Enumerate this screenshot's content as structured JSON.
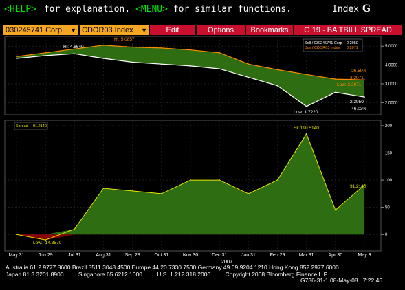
{
  "header": {
    "help_key": "<HELP>",
    "help_text": " for explanation, ",
    "menu_key": "<MENU>",
    "menu_text": " for similar functions.",
    "index_label": "Index",
    "index_letter": "G"
  },
  "toolbar": {
    "security1": "030245741 Corp",
    "security2": "CDOR03 Index",
    "edit": "Edit",
    "options": "Options",
    "bookmarks": "Bookmarks",
    "title": "G 19 - BA TBILL SPREAD"
  },
  "colors": {
    "amber": "#f5a623",
    "red": "#c8102e",
    "spread": "#e8e800",
    "sell": "#ffffff",
    "buy": "#ff8c00",
    "fill_green": "#2f6d12",
    "fill_red": "#8b0000"
  },
  "upper_panel": {
    "legend_sell": "Sell / 030245741 Corp",
    "legend_sell_val": "2.2950",
    "legend_buy": "Buy / CDOR03 Index",
    "legend_buy_val": "3.2071",
    "hi_sell": "Hi: 4.6640",
    "hi_buy": "Hi: 5.0857",
    "low_sell": "Low: 1.7220",
    "low_buy": "Low: 3.2071",
    "pct_buy": "-26.59%",
    "last_buy": "3.2071",
    "last_sell": "2.2950",
    "pct_sell": "-46.03%",
    "axis": [
      "5.0000",
      "4.0000",
      "3.0000",
      "2.0000"
    ]
  },
  "lower_panel": {
    "legend_label": "Spread",
    "legend_val": "91.2140",
    "hi": "Hi: 190.5140",
    "low": "Low: -14.3570",
    "last": "91.2140",
    "axis": [
      "200",
      "150",
      "100",
      "50",
      "0"
    ]
  },
  "x_axis": {
    "labels": [
      "May 31",
      "Jun 29",
      "Jul 31",
      "Aug 31",
      "Sep 28",
      "Oct 31",
      "Nov 30",
      "Dec 31",
      "Jan 31",
      "Feb 29",
      "Mar 31",
      "Apr 30",
      "May 3"
    ],
    "year": "2007"
  },
  "footer": {
    "line1": "Australia 61 2 9777 8600 Brazil 5511 3048 4500 Europe 44 20 7330 7500 Germany 49 69 9204 1210 Hong Kong 852 2977 6000",
    "line2": "Japan 81 3 3201 8900         Singapore 65 6212 1000         U.S. 1 212 318 2000         Copyright 2008 Bloomberg Finance L.P.",
    "line3": "G736-31-1 08-May-08   7:22:46"
  },
  "chart_data": [
    {
      "type": "line",
      "ylim": [
        1.5,
        5.3
      ],
      "x": [
        "May 31",
        "Jun 29",
        "Jul 31",
        "Aug 31",
        "Sep 28",
        "Oct 31",
        "Nov 30",
        "Dec 31",
        "Jan 31",
        "Feb 29",
        "Mar 31",
        "Apr 30",
        "May 3"
      ],
      "series": [
        {
          "name": "Sell / 030245741 Corp",
          "values": [
            4.35,
            4.5,
            4.6,
            4.35,
            4.15,
            4.05,
            3.95,
            3.8,
            3.35,
            2.9,
            1.8,
            2.55,
            2.3
          ]
        },
        {
          "name": "Buy / CDOR03 Index",
          "values": [
            4.45,
            4.65,
            4.85,
            5.05,
            4.95,
            4.9,
            4.8,
            4.65,
            4.05,
            3.75,
            3.5,
            3.25,
            3.21
          ]
        }
      ]
    },
    {
      "type": "area",
      "ylim": [
        -25,
        205
      ],
      "x": [
        "May 31",
        "Jun 29",
        "Jul 31",
        "Aug 31",
        "Sep 28",
        "Oct 31",
        "Nov 30",
        "Dec 31",
        "Jan 31",
        "Feb 29",
        "Mar 31",
        "Apr 30",
        "May 3"
      ],
      "series": [
        {
          "name": "Spread",
          "values": [
            0,
            -10,
            10,
            85,
            80,
            75,
            100,
            100,
            75,
            100,
            185,
            45,
            91.2
          ]
        }
      ]
    }
  ]
}
